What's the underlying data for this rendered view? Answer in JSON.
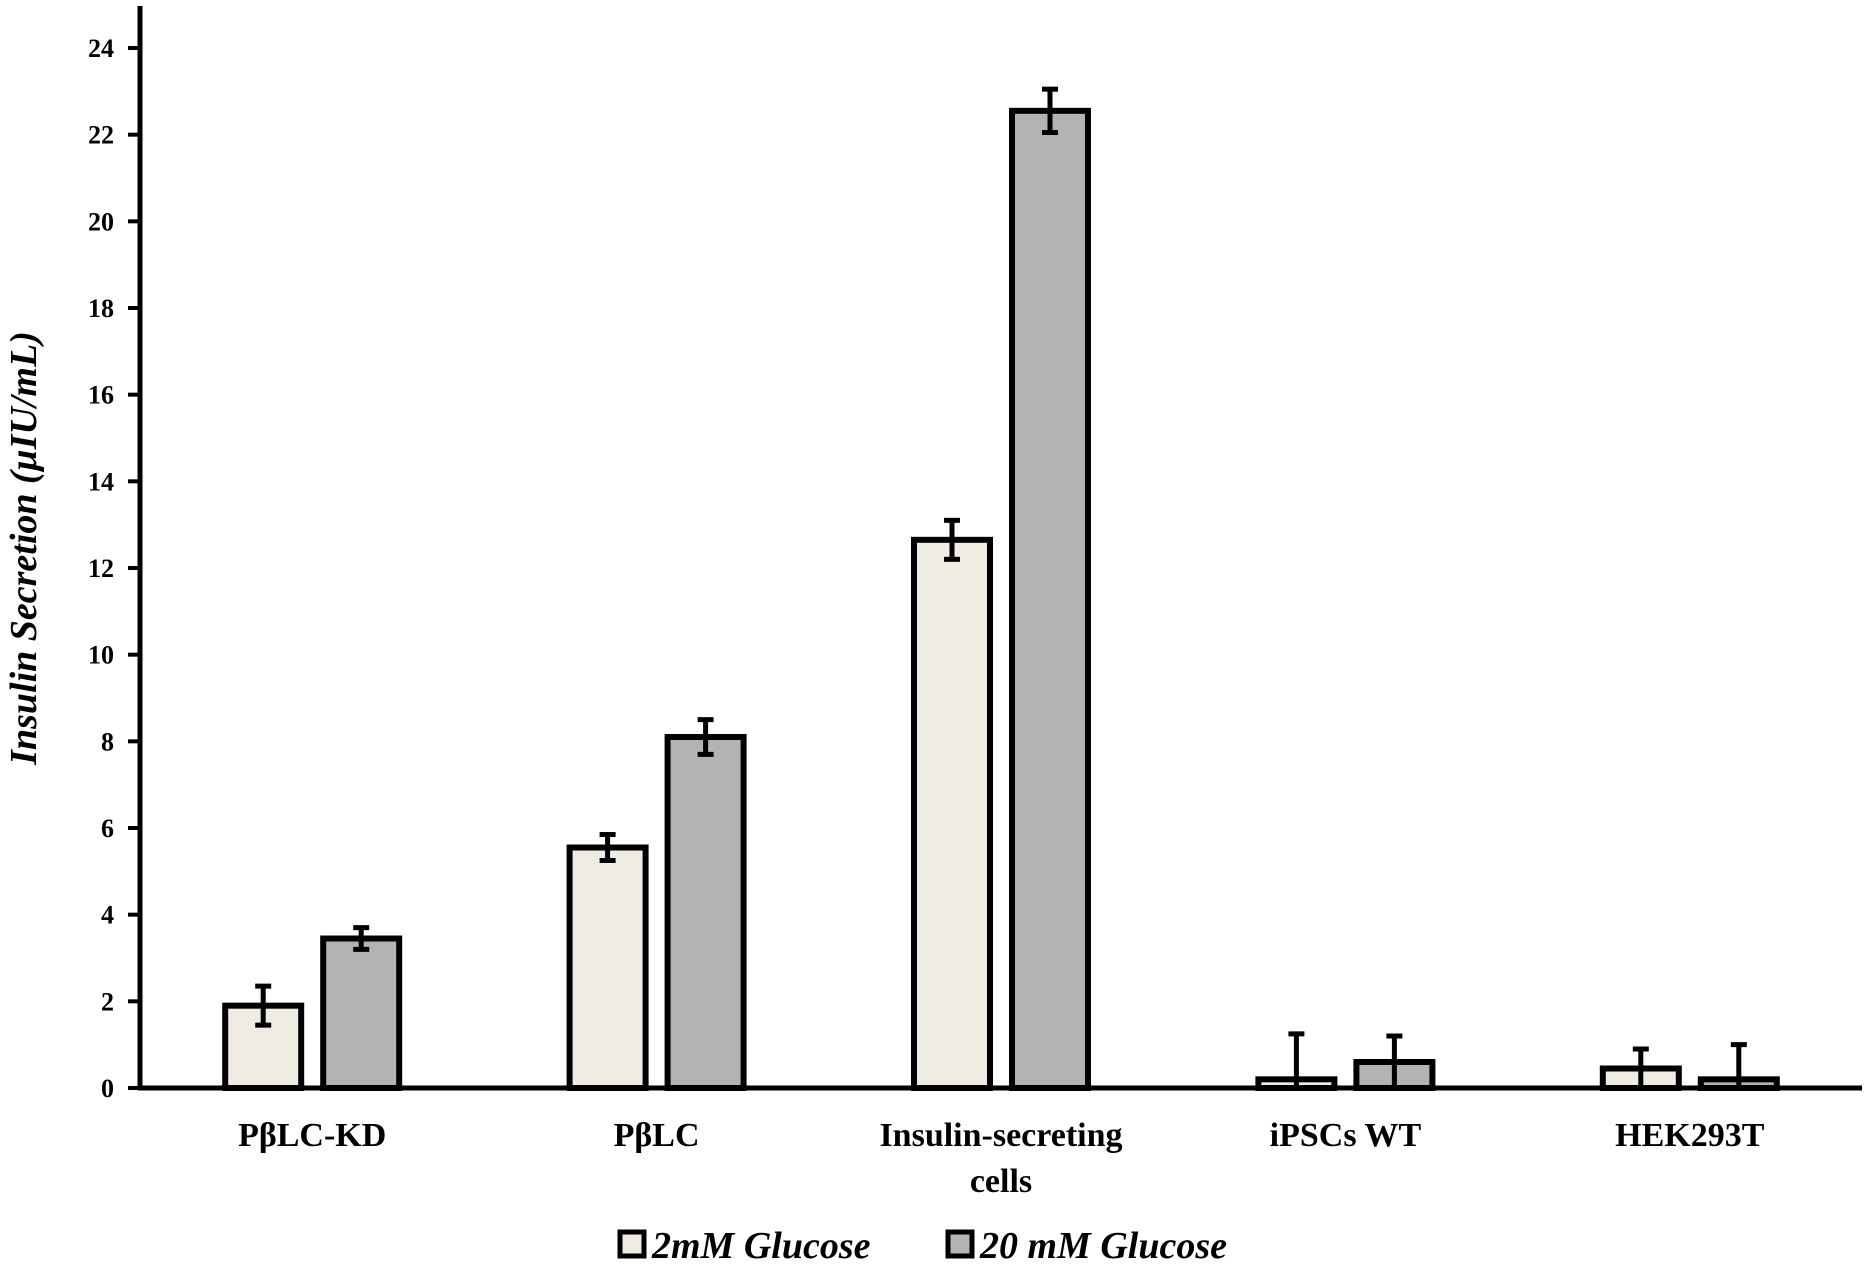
{
  "chart_data": {
    "type": "bar",
    "ylabel": "Insulin Secretion (µIU/mL)",
    "xlabel": "",
    "ylim": [
      0,
      24
    ],
    "yticks": [
      "0",
      "2",
      "4",
      "6",
      "8",
      "10",
      "12",
      "14",
      "16",
      "18",
      "20",
      "22",
      "24"
    ],
    "categories": [
      [
        "PβLC-KD"
      ],
      [
        "PβLC"
      ],
      [
        "Insulin-secreting",
        "cells"
      ],
      [
        "iPSCs WT"
      ],
      [
        "HEK293T"
      ]
    ],
    "series": [
      {
        "name": "2mM Glucose",
        "color": "#efede3",
        "values": [
          1.9,
          5.55,
          12.65,
          0.2,
          0.45
        ],
        "errors": [
          0.45,
          0.3,
          0.45,
          1.05,
          0.45
        ]
      },
      {
        "name": "20 mM Glucose",
        "color": "#b3b3b3",
        "values": [
          3.45,
          8.1,
          22.55,
          0.6,
          0.2
        ],
        "errors": [
          0.25,
          0.4,
          0.5,
          0.6,
          0.8
        ]
      }
    ],
    "grid": false,
    "legend": "bottom"
  }
}
